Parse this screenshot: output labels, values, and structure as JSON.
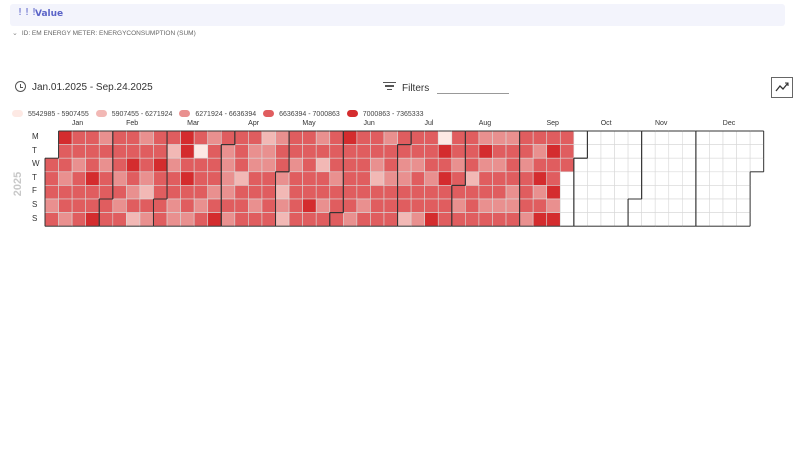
{
  "header": {
    "bars": "!!!",
    "title": "Value"
  },
  "subheader": {
    "label": "ID: EM ENERGY METER: ENERGYCONSUMPTION (SUM)"
  },
  "toolbar": {
    "date_range": "Jan.01.2025 - Sep.24.2025",
    "filters_label": "Filters",
    "filter_value": ""
  },
  "colors": {
    "bin1": "#fde9e4",
    "bin2": "#f2b8b5",
    "bin3": "#e9908f",
    "bin4": "#e05d5f",
    "bin5": "#d42c2e",
    "empty": "#ffffff",
    "grid": "#d8d8d8"
  },
  "chart_data": {
    "type": "heatmap",
    "year": "2025",
    "months": [
      "Jan",
      "Feb",
      "Mar",
      "Apr",
      "May",
      "Jun",
      "Jul",
      "Aug",
      "Sep",
      "Oct",
      "Nov",
      "Dec"
    ],
    "weekdays": [
      "M",
      "T",
      "W",
      "T",
      "F",
      "S",
      "S"
    ],
    "legend": [
      {
        "label": "5542985 - 5907455",
        "color": "#fde9e4"
      },
      {
        "label": "5907455 - 6271924",
        "color": "#f2b8b5"
      },
      {
        "label": "6271924 - 6636394",
        "color": "#e9908f"
      },
      {
        "label": "6636394 - 7000863",
        "color": "#e05d5f"
      },
      {
        "label": "7000863 - 7365333",
        "color": "#d42c2e"
      }
    ],
    "data_start": "2025-01-01",
    "data_end": "2025-09-24",
    "bins": "4443454434434434444444544534344444443434445434234432434454444423443355454434144434344434543333434442444433443423344443443232443444444444543424434444344454444434444434443244434434444433442443444344434451545444443443444424443534434343443434443344434443434534545445354443434444444445434"
  }
}
